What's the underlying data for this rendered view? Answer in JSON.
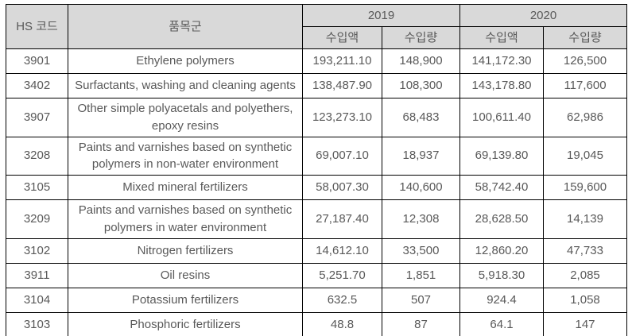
{
  "table": {
    "header": {
      "hs_code": "HS 코드",
      "product_group": "품목군",
      "year_2019": "2019",
      "year_2020": "2020",
      "import_value": "수입액",
      "import_quantity": "수입량"
    },
    "colors": {
      "header_bg": "#d9d9d9",
      "border": "#000000",
      "text": "#595959"
    },
    "rows": [
      {
        "hs": "3901",
        "name": "Ethylene polymers",
        "v2019": "193,211.10",
        "q2019": "148,900",
        "v2020": "141,172.30",
        "q2020": "126,500"
      },
      {
        "hs": "3402",
        "name": "Surfactants, washing and cleaning agents",
        "v2019": "138,487.90",
        "q2019": "108,300",
        "v2020": "143,178.80",
        "q2020": "117,600"
      },
      {
        "hs": "3907",
        "name": "Other simple polyacetals and polyethers, epoxy resins",
        "v2019": "123,273.10",
        "q2019": "68,483",
        "v2020": "100,611.40",
        "q2020": "62,986"
      },
      {
        "hs": "3208",
        "name": "Paints and varnishes based on synthetic polymers in non-water environment",
        "v2019": "69,007.10",
        "q2019": "18,937",
        "v2020": "69,139.80",
        "q2020": "19,045"
      },
      {
        "hs": "3105",
        "name": "Mixed mineral fertilizers",
        "v2019": "58,007.30",
        "q2019": "140,600",
        "v2020": "58,742.40",
        "q2020": "159,600"
      },
      {
        "hs": "3209",
        "name": "Paints and varnishes based on synthetic polymers in water environment",
        "v2019": "27,187.40",
        "q2019": "12,308",
        "v2020": "28,628.50",
        "q2020": "14,139"
      },
      {
        "hs": "3102",
        "name": "Nitrogen fertilizers",
        "v2019": "14,612.10",
        "q2019": "33,500",
        "v2020": "12,860.20",
        "q2020": "47,733"
      },
      {
        "hs": "3911",
        "name": "Oil resins",
        "v2019": "5,251.70",
        "q2019": "1,851",
        "v2020": "5,918.30",
        "q2020": "2,085"
      },
      {
        "hs": "3104",
        "name": "Potassium fertilizers",
        "v2019": "632.5",
        "q2019": "507",
        "v2020": "924.4",
        "q2020": "1,058"
      },
      {
        "hs": "3103",
        "name": "Phosphoric fertilizers",
        "v2019": "48.8",
        "q2019": "87",
        "v2020": "64.1",
        "q2020": "147"
      }
    ]
  },
  "chart_data": {
    "type": "table",
    "columns": [
      "HS 코드",
      "품목군",
      "2019 수입액",
      "2019 수입량",
      "2020 수입액",
      "2020 수입량"
    ],
    "rows": [
      [
        "3901",
        "Ethylene polymers",
        193211.1,
        148900,
        141172.3,
        126500
      ],
      [
        "3402",
        "Surfactants, washing and cleaning agents",
        138487.9,
        108300,
        143178.8,
        117600
      ],
      [
        "3907",
        "Other simple polyacetals and polyethers, epoxy resins",
        123273.1,
        68483,
        100611.4,
        62986
      ],
      [
        "3208",
        "Paints and varnishes based on synthetic polymers in non-water environment",
        69007.1,
        18937,
        69139.8,
        19045
      ],
      [
        "3105",
        "Mixed mineral fertilizers",
        58007.3,
        140600,
        58742.4,
        159600
      ],
      [
        "3209",
        "Paints and varnishes based on synthetic polymers in water environment",
        27187.4,
        12308,
        28628.5,
        14139
      ],
      [
        "3102",
        "Nitrogen fertilizers",
        14612.1,
        33500,
        12860.2,
        47733
      ],
      [
        "3911",
        "Oil resins",
        5251.7,
        1851,
        5918.3,
        2085
      ],
      [
        "3104",
        "Potassium fertilizers",
        632.5,
        507,
        924.4,
        1058
      ],
      [
        "3103",
        "Phosphoric fertilizers",
        48.8,
        87,
        64.1,
        147
      ]
    ]
  }
}
